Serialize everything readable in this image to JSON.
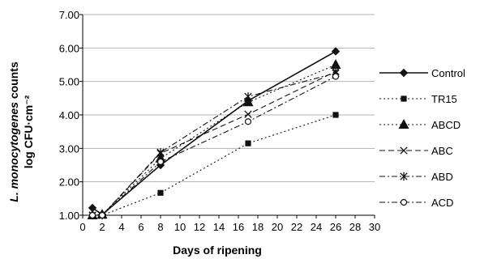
{
  "chart_data": {
    "type": "line",
    "title": "",
    "xlabel": "Days of ripening",
    "ylabel_line1_prefix": "L. monocytogenes",
    "ylabel_line1_suffix": " counts",
    "ylabel_line2": "log CFU·cm⁻²",
    "xlim": [
      0,
      30
    ],
    "ylim": [
      1,
      7
    ],
    "x_ticks": [
      0,
      2,
      4,
      6,
      8,
      10,
      12,
      14,
      16,
      18,
      20,
      22,
      24,
      26,
      28,
      30
    ],
    "x_tick_labels": [
      "0",
      "2",
      "4",
      "6",
      "8",
      "10",
      "12",
      "14",
      "16",
      "18",
      "20",
      "22",
      "24",
      "26",
      "28",
      "30"
    ],
    "y_ticks": [
      1,
      2,
      3,
      4,
      5,
      6,
      7
    ],
    "y_tick_labels": [
      "1.00",
      "2.00",
      "3.00",
      "4.00",
      "5.00",
      "6.00",
      "7.00"
    ],
    "grid": "horizontal",
    "legend_position": "right",
    "x": [
      1,
      2,
      8,
      17,
      26
    ],
    "series": [
      {
        "name": "Control",
        "values": [
          1.22,
          1.02,
          2.5,
          4.42,
          5.9
        ],
        "marker": "diamond",
        "dash": "solid"
      },
      {
        "name": "TR15",
        "values": [
          1.0,
          1.0,
          1.67,
          3.15,
          4.0
        ],
        "marker": "square",
        "dash": "dot"
      },
      {
        "name": "ABCD",
        "values": [
          1.0,
          1.02,
          2.7,
          4.38,
          5.5
        ],
        "marker": "triangle",
        "dash": "dot"
      },
      {
        "name": "ABC",
        "values": [
          1.0,
          1.0,
          2.85,
          4.02,
          5.3
        ],
        "marker": "x",
        "dash": "dash"
      },
      {
        "name": "ABD",
        "values": [
          1.0,
          1.0,
          2.88,
          4.55,
          5.25
        ],
        "marker": "asterisk",
        "dash": "dashdot"
      },
      {
        "name": "ACD",
        "values": [
          1.0,
          1.0,
          2.6,
          3.8,
          5.15
        ],
        "marker": "circle",
        "dash": "dashdot"
      }
    ]
  }
}
